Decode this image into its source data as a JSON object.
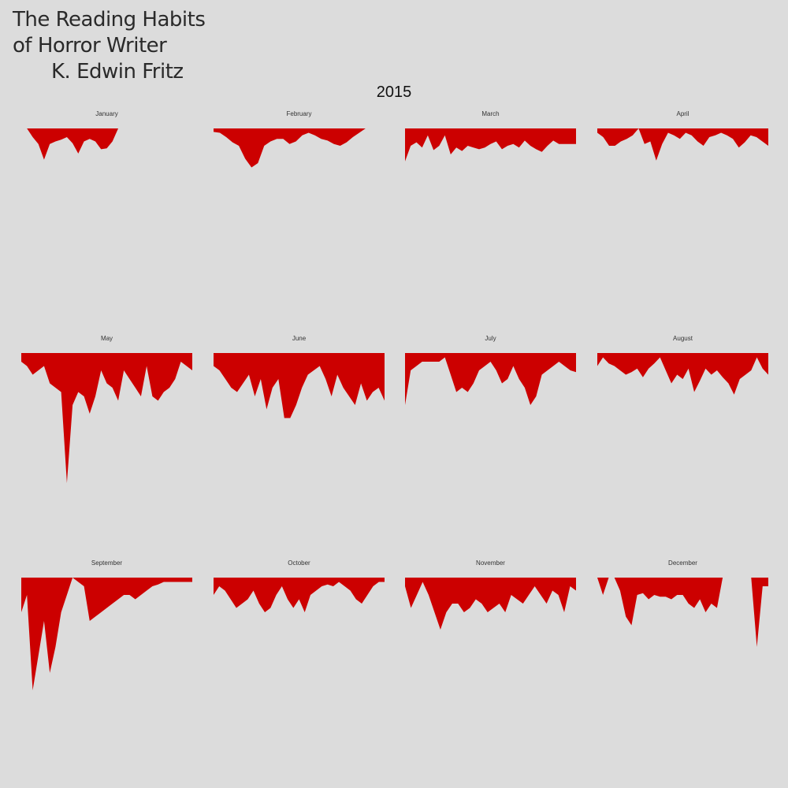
{
  "title": {
    "line1": "The Reading Habits",
    "line2": "of Horror Writer",
    "line3": "K. Edwin Fritz"
  },
  "year": "2015",
  "colors": {
    "background": "#dcdcdc",
    "fill": "#cc0000",
    "text": "#2a2a2a"
  },
  "chart_data": {
    "type": "area",
    "orientation": "inverted",
    "facet": "month",
    "x_unit": "day of month",
    "ylim": [
      0,
      150
    ],
    "panels": [
      {
        "month": "January",
        "days": 31,
        "values": [
          0,
          0,
          10,
          18,
          36,
          18,
          15,
          13,
          10,
          17,
          29,
          15,
          12,
          15,
          24,
          23,
          15,
          0,
          0,
          0,
          0,
          0,
          0,
          0,
          0,
          0,
          0,
          0,
          0,
          0,
          0
        ]
      },
      {
        "month": "February",
        "days": 28,
        "values": [
          4,
          5,
          10,
          16,
          20,
          35,
          45,
          40,
          20,
          15,
          12,
          12,
          18,
          15,
          8,
          5,
          8,
          12,
          14,
          18,
          20,
          16,
          10,
          5,
          0,
          0,
          0,
          0
        ]
      },
      {
        "month": "March",
        "days": 31,
        "values": [
          38,
          20,
          16,
          22,
          8,
          25,
          20,
          8,
          30,
          22,
          26,
          20,
          22,
          24,
          22,
          18,
          15,
          24,
          20,
          18,
          22,
          14,
          20,
          24,
          27,
          20,
          14,
          18,
          18,
          18,
          18
        ]
      },
      {
        "month": "April",
        "days": 30,
        "values": [
          5,
          10,
          20,
          20,
          15,
          12,
          8,
          0,
          18,
          15,
          37,
          18,
          5,
          8,
          12,
          5,
          8,
          15,
          20,
          10,
          8,
          5,
          8,
          12,
          22,
          16,
          8,
          10,
          15,
          20
        ]
      },
      {
        "month": "May",
        "days": 31,
        "values": [
          10,
          15,
          25,
          20,
          15,
          35,
          40,
          45,
          150,
          60,
          45,
          50,
          70,
          50,
          20,
          35,
          40,
          55,
          20,
          30,
          40,
          50,
          15,
          50,
          55,
          45,
          40,
          30,
          10,
          15,
          20
        ]
      },
      {
        "month": "June",
        "days": 30,
        "values": [
          15,
          20,
          30,
          40,
          45,
          35,
          25,
          50,
          30,
          65,
          40,
          30,
          75,
          75,
          60,
          40,
          25,
          20,
          15,
          30,
          50,
          25,
          40,
          50,
          60,
          35,
          55,
          45,
          40,
          55
        ]
      },
      {
        "month": "July",
        "days": 31,
        "values": [
          60,
          20,
          15,
          10,
          10,
          10,
          10,
          5,
          25,
          45,
          40,
          45,
          35,
          20,
          15,
          10,
          20,
          35,
          30,
          15,
          30,
          40,
          60,
          50,
          25,
          20,
          15,
          10,
          15,
          20,
          22
        ]
      },
      {
        "month": "August",
        "days": 31,
        "values": [
          15,
          5,
          12,
          15,
          20,
          25,
          22,
          18,
          28,
          18,
          12,
          5,
          20,
          35,
          25,
          30,
          18,
          45,
          32,
          18,
          25,
          20,
          28,
          35,
          48,
          30,
          25,
          20,
          5,
          18,
          25
        ]
      },
      {
        "month": "September",
        "days": 31,
        "values": [
          40,
          20,
          130,
          90,
          50,
          110,
          80,
          40,
          20,
          0,
          5,
          10,
          50,
          45,
          40,
          35,
          30,
          25,
          20,
          20,
          25,
          20,
          15,
          10,
          8,
          5,
          5,
          5,
          5,
          5,
          5
        ]
      },
      {
        "month": "October",
        "days": 31,
        "values": [
          20,
          10,
          15,
          25,
          35,
          30,
          25,
          15,
          30,
          40,
          35,
          20,
          10,
          25,
          35,
          25,
          40,
          20,
          15,
          10,
          8,
          10,
          5,
          10,
          15,
          25,
          30,
          20,
          10,
          5,
          5
        ]
      },
      {
        "month": "November",
        "days": 30,
        "values": [
          10,
          35,
          20,
          5,
          20,
          40,
          60,
          40,
          30,
          30,
          40,
          35,
          25,
          30,
          40,
          35,
          30,
          40,
          20,
          25,
          30,
          20,
          10,
          20,
          30,
          15,
          20,
          40,
          10,
          15
        ]
      },
      {
        "month": "December",
        "days": 31,
        "values": [
          0,
          20,
          0,
          0,
          15,
          45,
          55,
          20,
          18,
          25,
          20,
          22,
          22,
          25,
          20,
          20,
          30,
          35,
          25,
          40,
          30,
          35,
          0,
          0,
          0,
          0,
          0,
          0,
          80,
          10,
          10
        ]
      }
    ]
  }
}
